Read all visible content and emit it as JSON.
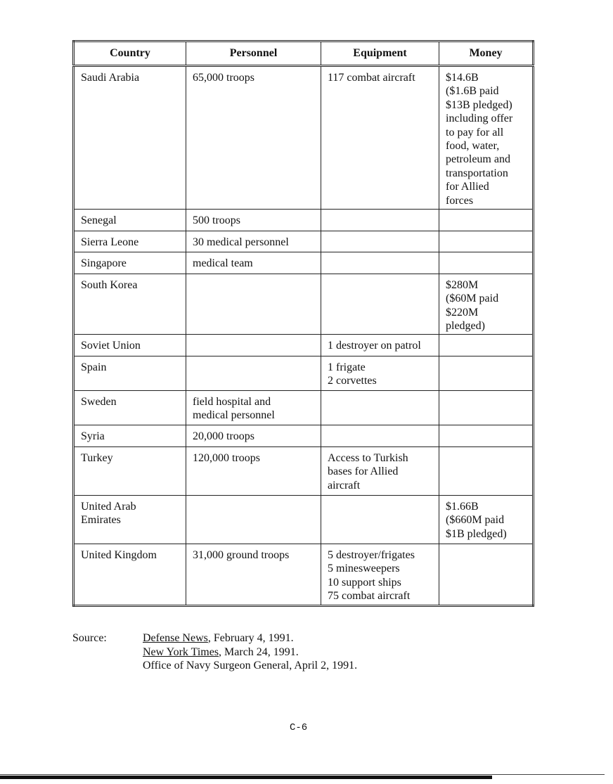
{
  "table": {
    "headers": [
      "Country",
      "Personnel",
      "Equipment",
      "Money"
    ],
    "rows": [
      [
        "Saudi Arabia",
        "65,000 troops",
        "117 combat aircraft",
        "$14.6B\n($1.6B paid\n$13B pledged)\nincluding offer\nto pay for all\nfood, water,\npetroleum and\ntransportation\nfor Allied\nforces"
      ],
      [
        "Senegal",
        "500 troops",
        "",
        ""
      ],
      [
        "Sierra Leone",
        "30 medical personnel",
        "",
        ""
      ],
      [
        "Singapore",
        "medical team",
        "",
        ""
      ],
      [
        "South Korea",
        "",
        "",
        "$280M\n($60M paid\n$220M\npledged)"
      ],
      [
        "Soviet Union",
        "",
        "1 destroyer on patrol",
        ""
      ],
      [
        "Spain",
        "",
        "1 frigate\n2 corvettes",
        ""
      ],
      [
        "Sweden",
        "field hospital and\nmedical personnel",
        "",
        ""
      ],
      [
        "Syria",
        "20,000 troops",
        "",
        ""
      ],
      [
        "Turkey",
        "120,000 troops",
        "Access to Turkish\nbases for Allied\naircraft",
        ""
      ],
      [
        "United Arab\nEmirates",
        "",
        "",
        "$1.66B\n($660M paid\n$1B pledged)"
      ],
      [
        "United Kingdom",
        "31,000 ground troops",
        "5 destroyer/frigates\n5 minesweepers\n10 support ships\n75 combat aircraft",
        ""
      ]
    ]
  },
  "source": {
    "label": "Source:",
    "entries": [
      {
        "title": "Defense News",
        "rest": ", February 4, 1991."
      },
      {
        "title": "New York Times",
        "rest": ", March 24, 1991."
      },
      {
        "title": "",
        "rest": "Office of Navy Surgeon General, April 2, 1991."
      }
    ]
  },
  "page_number": "C-6"
}
